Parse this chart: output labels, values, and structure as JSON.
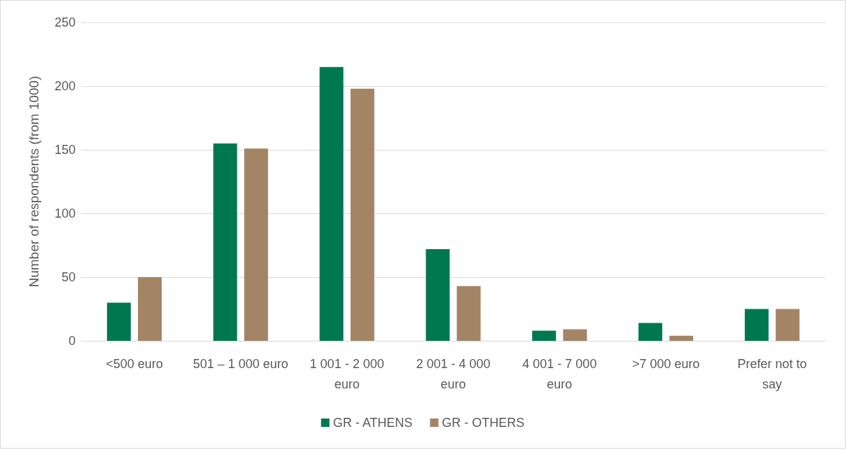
{
  "chart_data": {
    "type": "bar",
    "ylabel": "Number of respondents (from 1000)",
    "categories": [
      "<500 euro",
      "501 – 1 000 euro",
      "1 001 - 2 000 euro",
      "2 001 - 4 000 euro",
      "4 001 - 7 000 euro",
      ">7 000 euro",
      "Prefer not to say"
    ],
    "series": [
      {
        "name": "GR - ATHENS",
        "color": "#00784f",
        "values": [
          30,
          155,
          215,
          72,
          8,
          14,
          25
        ]
      },
      {
        "name": "GR - OTHERS",
        "color": "#a38566",
        "values": [
          50,
          151,
          198,
          43,
          9,
          4,
          25
        ]
      }
    ],
    "ylim": [
      0,
      250
    ],
    "yticks": [
      0,
      50,
      100,
      150,
      200,
      250
    ],
    "grid": "y",
    "legend": "bottom"
  }
}
